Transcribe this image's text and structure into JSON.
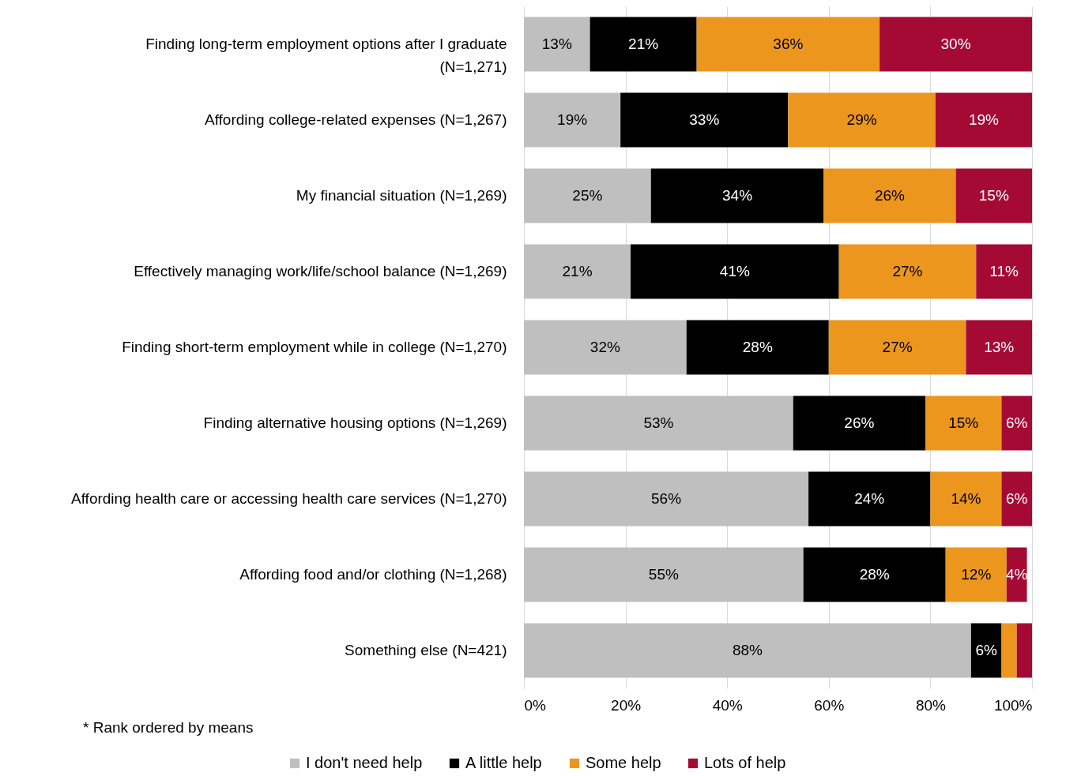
{
  "chart_data": {
    "type": "bar",
    "orientation": "horizontal",
    "stacked": true,
    "categories": [
      "Finding long-term employment options after I graduate\n(N=1,271)",
      "Affording college-related expenses (N=1,267)",
      "My financial situation (N=1,269)",
      "Effectively managing work/life/school balance (N=1,269)",
      "Finding short-term employment while in college (N=1,270)",
      "Finding alternative housing options (N=1,269)",
      "Affording health care or accessing health care services (N=1,270)",
      "Affording food and/or clothing (N=1,268)",
      "Something else (N=421)"
    ],
    "series": [
      {
        "name": "I don't need help",
        "color": "#bfbfbf",
        "values": [
          13,
          19,
          25,
          21,
          32,
          53,
          56,
          55,
          88
        ],
        "value_labels": [
          "13%",
          "19%",
          "25%",
          "21%",
          "32%",
          "53%",
          "56%",
          "55%",
          "88%"
        ]
      },
      {
        "name": "A little help",
        "color": "#000000",
        "values": [
          21,
          33,
          34,
          41,
          28,
          26,
          24,
          28,
          6
        ],
        "value_labels": [
          "21%",
          "33%",
          "34%",
          "41%",
          "28%",
          "26%",
          "24%",
          "28%",
          "6%"
        ]
      },
      {
        "name": "Some help",
        "color": "#ec961e",
        "values": [
          36,
          29,
          26,
          27,
          27,
          15,
          14,
          12,
          3
        ],
        "value_labels": [
          "36%",
          "29%",
          "26%",
          "27%",
          "27%",
          "15%",
          "14%",
          "12%",
          null
        ]
      },
      {
        "name": "Lots of help",
        "color": "#a50a35",
        "values": [
          30,
          19,
          15,
          11,
          13,
          6,
          6,
          4,
          3
        ],
        "value_labels": [
          "30%",
          "19%",
          "15%",
          "11%",
          "13%",
          "6%",
          "6%",
          "4%",
          null
        ]
      }
    ],
    "xlim": [
      0,
      100
    ],
    "xticks": [
      {
        "value": 0,
        "label": "0%"
      },
      {
        "value": 20,
        "label": "20%"
      },
      {
        "value": 40,
        "label": "40%"
      },
      {
        "value": 60,
        "label": "60%"
      },
      {
        "value": 80,
        "label": "80%"
      },
      {
        "value": 100,
        "label": "100%"
      }
    ],
    "grid": "x",
    "legend": "bottom",
    "annotations": [
      "* Rank ordered by means"
    ]
  }
}
